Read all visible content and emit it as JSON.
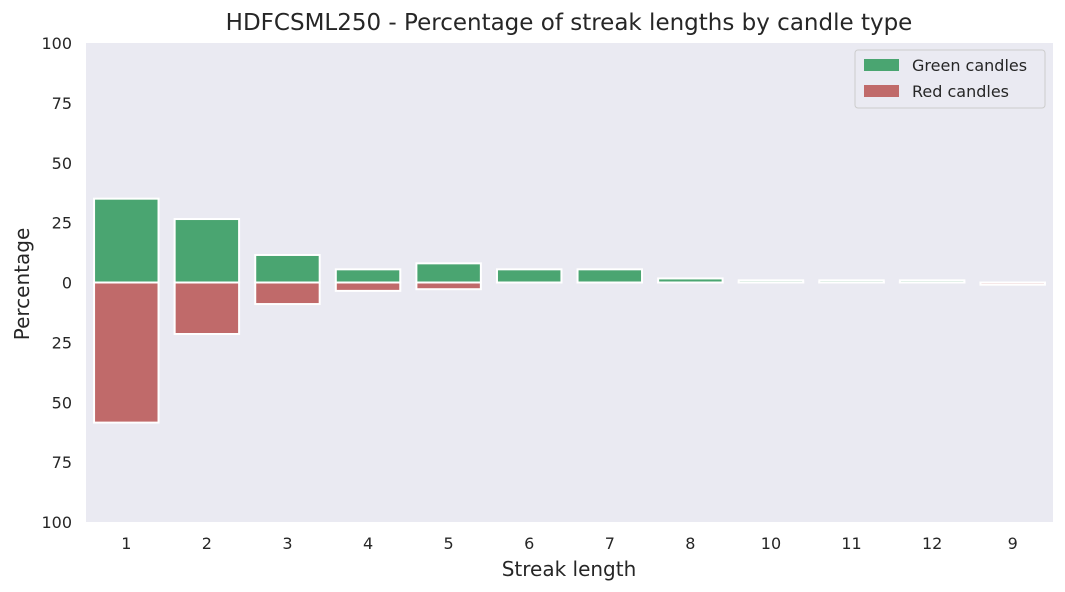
{
  "chart_data": {
    "type": "bar",
    "title": "HDFCSML250 - Percentage of streak lengths by candle type",
    "xlabel": "Streak length",
    "ylabel": "Percentage",
    "categories": [
      "1",
      "2",
      "3",
      "4",
      "5",
      "6",
      "7",
      "8",
      "10",
      "11",
      "12",
      "9"
    ],
    "series": [
      {
        "name": "Green candles",
        "color": "#4aa571",
        "direction": "up",
        "values": [
          35,
          26.5,
          11.5,
          5.5,
          8,
          5.5,
          5.5,
          1.7,
          0.9,
          0.9,
          0.9,
          0
        ]
      },
      {
        "name": "Red candles",
        "color": "#c06a6a",
        "direction": "down",
        "values": [
          58.5,
          21.5,
          9,
          3.5,
          2.8,
          0,
          0,
          0,
          0,
          0,
          0,
          0.9
        ]
      }
    ],
    "ylim": [
      -100,
      100
    ],
    "yticks": [
      100,
      75,
      50,
      25,
      0,
      -25,
      -50,
      -75,
      -100
    ],
    "ytick_labels": [
      "100",
      "75",
      "50",
      "25",
      "0",
      "25",
      "50",
      "75",
      "100"
    ],
    "grid": false,
    "legend_position": "top-right",
    "background_color": "#eaeaf2"
  }
}
